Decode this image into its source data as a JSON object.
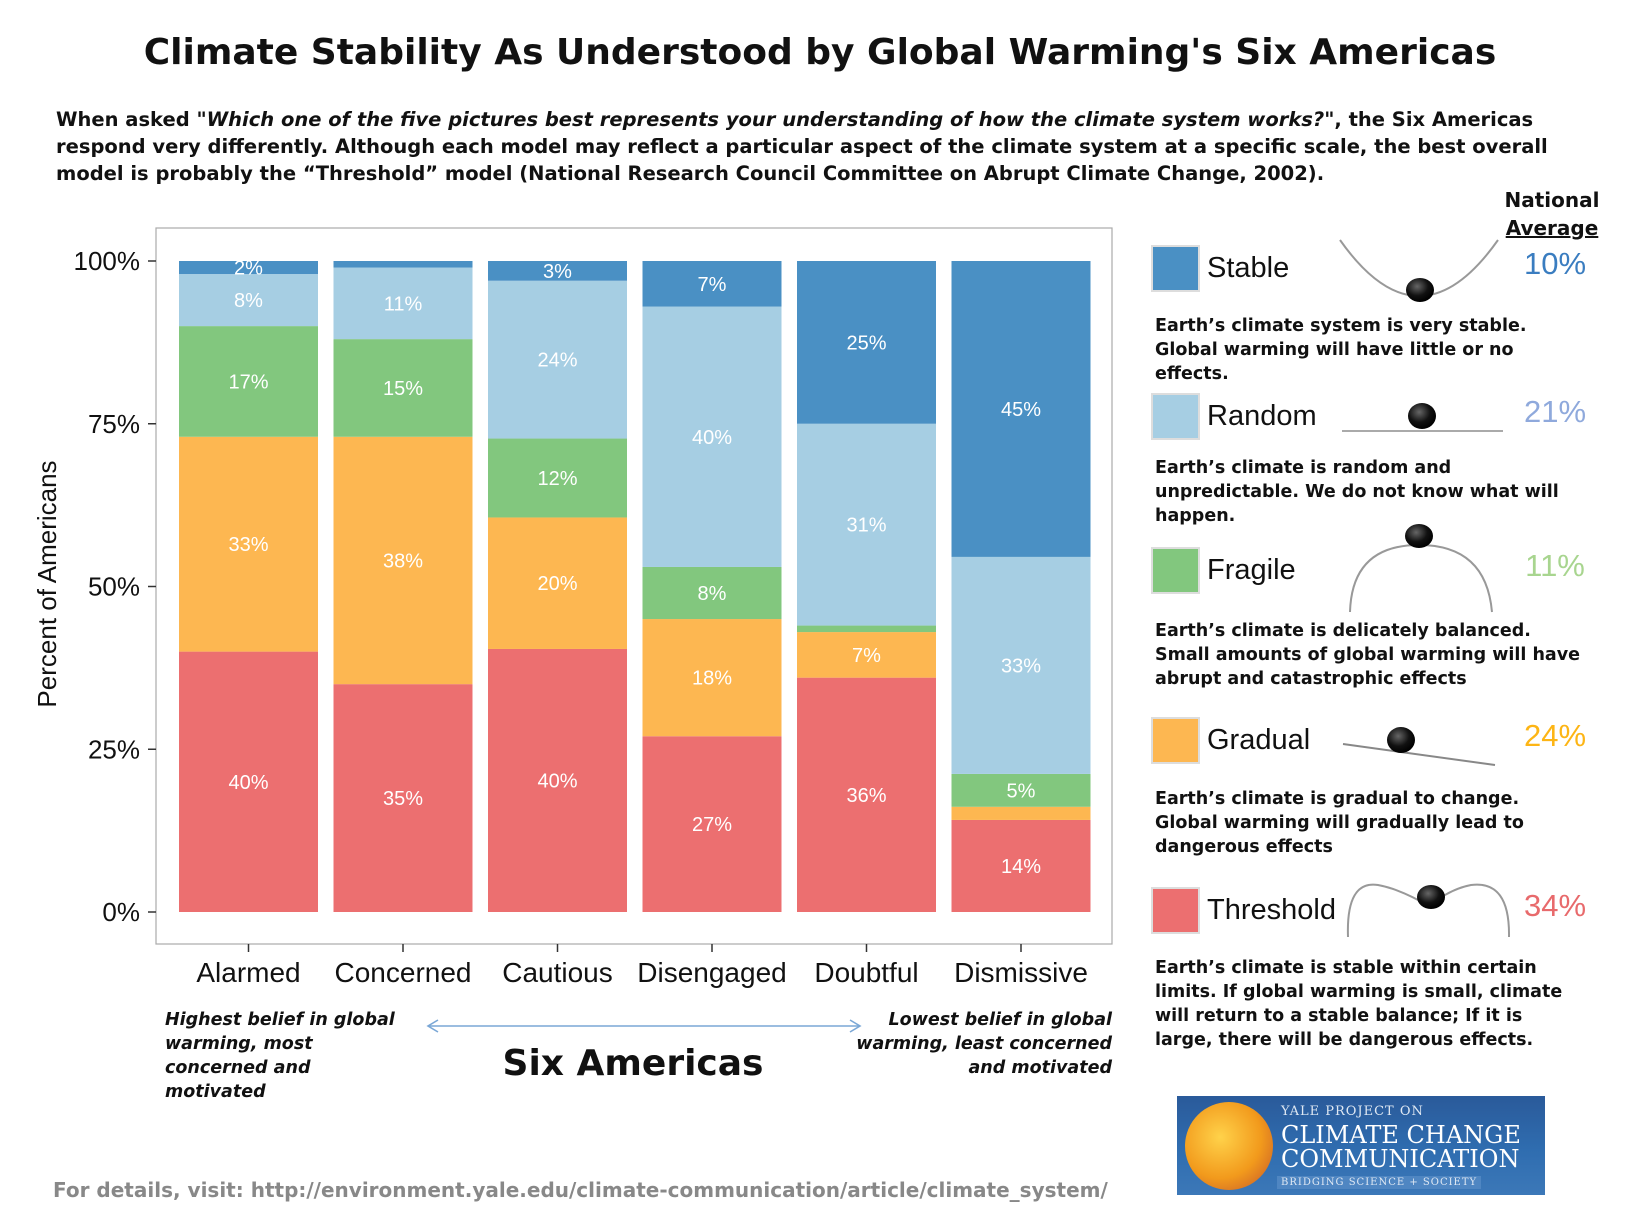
{
  "title": "Climate Stability As Understood by Global Warming's Six Americas",
  "subtitle": {
    "pre": "When asked \"",
    "question": "Which one of the five pictures best represents your understanding of how the climate system works?",
    "post": "\", the Six Americas respond very differently. Although each model may reflect a particular aspect of the climate system at a specific scale, the best overall model is probably the “Threshold” model (National Research Council Committee on Abrupt Climate Change, 2002)."
  },
  "chart_data": {
    "type": "bar",
    "stacked": true,
    "categories": [
      "Alarmed",
      "Concerned",
      "Cautious",
      "Disengaged",
      "Doubtful",
      "Dismissive"
    ],
    "series": [
      {
        "name": "Threshold",
        "color": "#EC6F70",
        "values": [
          40,
          35,
          40,
          27,
          36,
          14
        ],
        "labels": [
          "40%",
          "35%",
          "40%",
          "27%",
          "36%",
          "14%"
        ]
      },
      {
        "name": "Gradual",
        "color": "#FDB751",
        "values": [
          33,
          38,
          20,
          18,
          7,
          2
        ],
        "labels": [
          "33%",
          "38%",
          "20%",
          "18%",
          "7%",
          ""
        ]
      },
      {
        "name": "Fragile",
        "color": "#82C77E",
        "values": [
          17,
          15,
          12,
          8,
          1,
          5
        ],
        "labels": [
          "17%",
          "15%",
          "12%",
          "8%",
          "",
          "5%"
        ]
      },
      {
        "name": "Random",
        "color": "#A6CEE3",
        "values": [
          8,
          11,
          24,
          40,
          31,
          33
        ],
        "labels": [
          "8%",
          "11%",
          "24%",
          "40%",
          "31%",
          "33%"
        ]
      },
      {
        "name": "Stable",
        "color": "#4A90C4",
        "values": [
          2,
          1,
          3,
          7,
          25,
          45
        ],
        "labels": [
          "2%",
          "",
          "3%",
          "7%",
          "25%",
          "45%"
        ]
      }
    ],
    "xlabel": "Six Americas",
    "ylabel": "Percent of Americans",
    "ylim": [
      0,
      100
    ],
    "yticks": [
      "0%",
      "25%",
      "50%",
      "75%",
      "100%"
    ],
    "grid": false,
    "legend_position": "right"
  },
  "notes": {
    "left": "Highest belief in global warming, most concerned and motivated",
    "right": "Lowest belief in global warming, least concerned and motivated"
  },
  "legend": {
    "header_line1": "National",
    "header_line2": "Average",
    "items": [
      {
        "name": "Stable",
        "color": "#4A90C4",
        "pct": "10%",
        "pct_color": "#3A7DC0",
        "desc": "Earth’s climate system is very stable. Global warming will have little or no effects."
      },
      {
        "name": "Random",
        "color": "#A6CEE3",
        "pct": "21%",
        "pct_color": "#8FA9DC",
        "desc": "Earth’s climate is random and unpredictable. We do not know what will happen."
      },
      {
        "name": "Fragile",
        "color": "#82C77E",
        "pct": "11%",
        "pct_color": "#A8D58F",
        "desc": "Earth’s climate is delicately balanced. Small amounts of global warming will have abrupt and catastrophic effects"
      },
      {
        "name": "Gradual",
        "color": "#FDB751",
        "pct": "24%",
        "pct_color": "#FDB515",
        "desc": "Earth’s climate is gradual to change. Global warming will gradually lead to dangerous effects"
      },
      {
        "name": "Threshold",
        "color": "#EC6F70",
        "pct": "34%",
        "pct_color": "#E86A6C",
        "desc": "Earth’s climate is stable within certain limits. If global warming is small, climate will return to a stable balance; If it is large, there will be dangerous effects."
      }
    ]
  },
  "footer": "For details, visit: http://environment.yale.edu/climate-communication/article/climate_system/",
  "logo": {
    "line1": "YALE PROJECT ON",
    "line2": "CLIMATE CHANGE",
    "line3": "COMMUNICATION",
    "line4": "BRIDGING SCIENCE + SOCIETY"
  }
}
